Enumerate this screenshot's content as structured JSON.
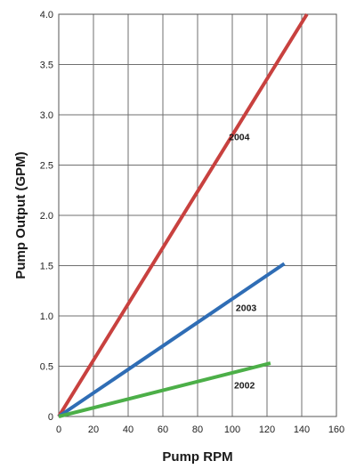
{
  "chart_data": {
    "type": "line",
    "title": "",
    "xlabel": "Pump RPM",
    "ylabel": "Pump Output (GPM)",
    "xlim": [
      0,
      160
    ],
    "ylim": [
      0,
      4.0
    ],
    "x_ticks": [
      0,
      20,
      40,
      60,
      80,
      100,
      120,
      140,
      160
    ],
    "x_tick_labels": [
      "0",
      "20",
      "40",
      "60",
      "80",
      "100",
      "120",
      "140",
      "160"
    ],
    "y_ticks": [
      0,
      0.5,
      1.0,
      1.5,
      2.0,
      2.5,
      3.0,
      3.5,
      4.0
    ],
    "y_tick_labels": [
      "0",
      "0.5",
      "1.0",
      "1.5",
      "2.0",
      "2.5",
      "3.0",
      "3.5",
      "4.0"
    ],
    "grid": true,
    "legend": "none",
    "series": [
      {
        "name": "2004",
        "color": "#c8413f",
        "x": [
          0,
          143
        ],
        "y": [
          0,
          4.0
        ],
        "label_at": [
          104,
          2.75
        ]
      },
      {
        "name": "2003",
        "color": "#2f6db5",
        "x": [
          0,
          130
        ],
        "y": [
          0,
          1.52
        ],
        "label_at": [
          108,
          1.05
        ]
      },
      {
        "name": "2002",
        "color": "#4caf48",
        "x": [
          0,
          122
        ],
        "y": [
          0,
          0.53
        ],
        "label_at": [
          107,
          0.28
        ]
      }
    ]
  }
}
